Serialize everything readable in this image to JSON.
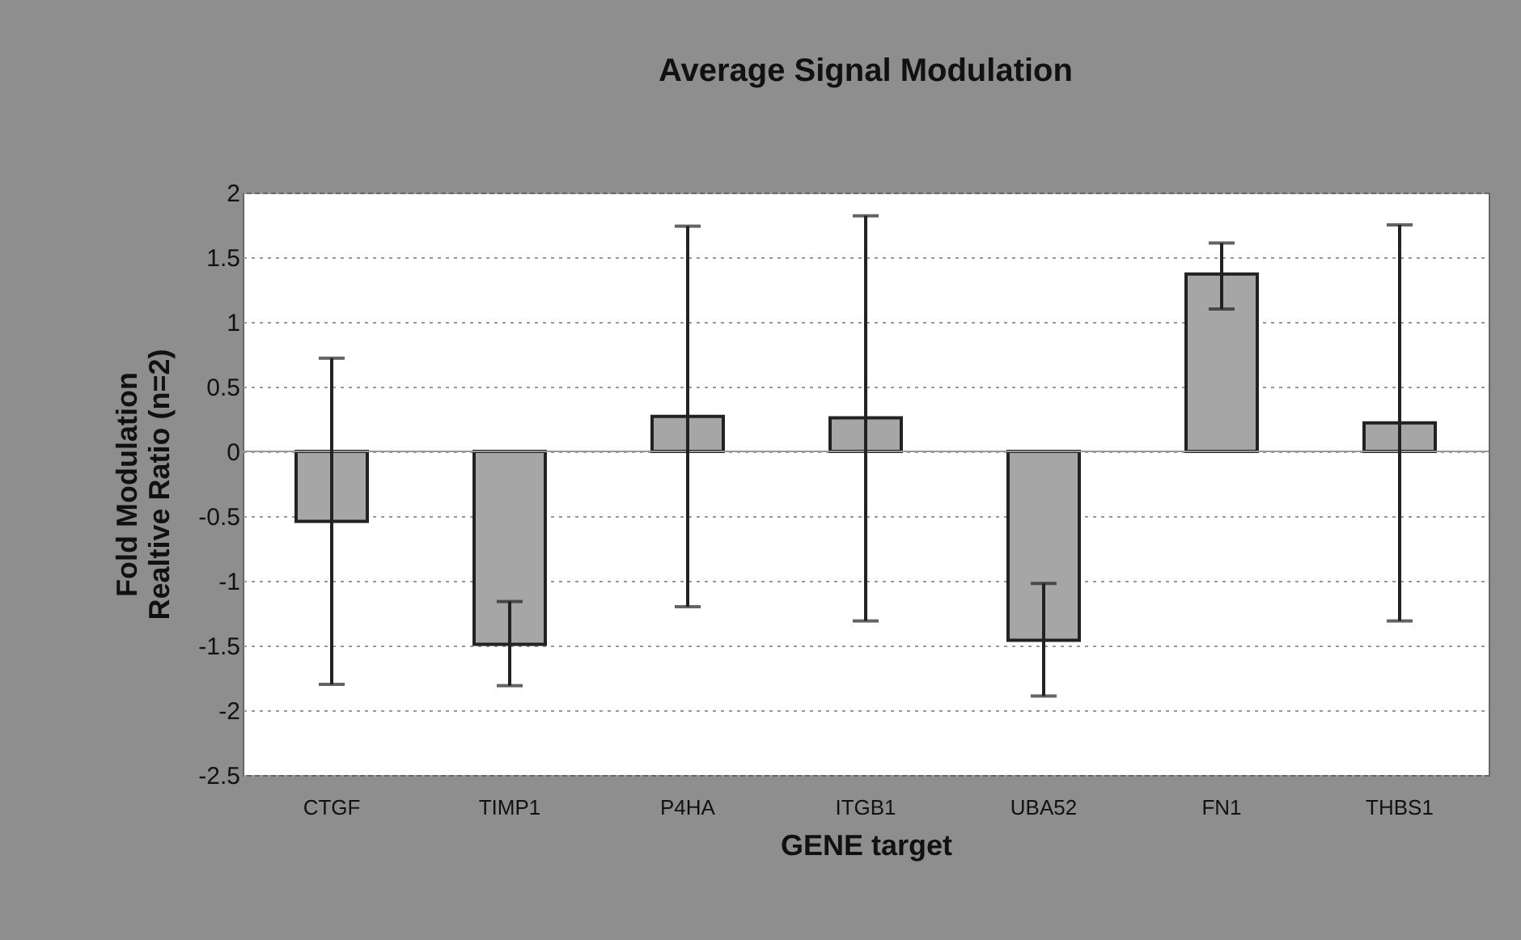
{
  "chart_data": {
    "type": "bar",
    "title": "Average Signal Modulation",
    "xlabel": "GENE target",
    "ylabel": "Fold Modulation\nRealtive Ratio (n=2)",
    "categories": [
      "CTGF",
      "TIMP1",
      "P4HA",
      "ITGB1",
      "UBA52",
      "FN1",
      "THBS1"
    ],
    "values": [
      -0.54,
      -1.49,
      0.27,
      0.26,
      -1.46,
      1.37,
      0.22
    ],
    "errors": [
      [
        -1.8,
        0.72
      ],
      [
        -1.81,
        -1.16
      ],
      [
        -1.2,
        1.74
      ],
      [
        -1.31,
        1.82
      ],
      [
        -1.89,
        -1.02
      ],
      [
        1.1,
        1.61
      ],
      [
        -1.31,
        1.75
      ]
    ],
    "color": "#a6a6a6",
    "ylim": [
      -2.5,
      2
    ],
    "yticks": [
      -2.5,
      -2,
      -1.5,
      -1,
      -0.5,
      0,
      0.5,
      1,
      1.5,
      2
    ],
    "grid": "y"
  }
}
